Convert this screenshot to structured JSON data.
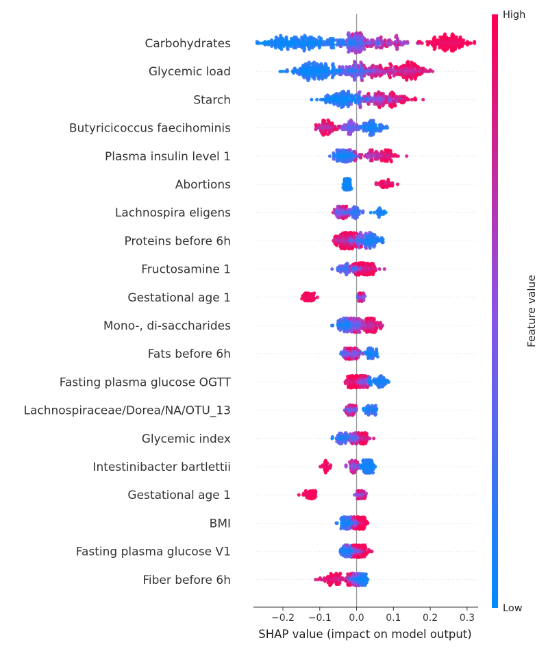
{
  "chart_data": {
    "type": "scatter",
    "subtype": "shap-beeswarm",
    "xlabel": "SHAP value (impact on model output)",
    "xlim": [
      -0.28,
      0.33
    ],
    "xticks": [
      -0.2,
      -0.1,
      0.0,
      0.1,
      0.2,
      0.3
    ],
    "xtick_labels": [
      "−0.2",
      "−0.1",
      "0.0",
      "0.1",
      "0.2",
      "0.3"
    ],
    "colorbar": {
      "title": "Feature value",
      "high_label": "High",
      "low_label": "Low",
      "low_color": "#008bfb",
      "mid_color": "#8c52e6",
      "high_color": "#ff0051"
    },
    "features": [
      {
        "name": "Carbohydrates",
        "width": 1.0,
        "clusters": [
          {
            "c": -0.17,
            "s": 0.05,
            "n": 160,
            "v": 0.05,
            "sv": 0.07
          },
          {
            "c": -0.05,
            "s": 0.05,
            "n": 60,
            "v": 0.1,
            "sv": 0.08
          },
          {
            "c": 0.0,
            "s": 0.02,
            "n": 110,
            "v": 0.35,
            "sv": 0.15
          },
          {
            "c": 0.07,
            "s": 0.035,
            "n": 80,
            "v": 0.62,
            "sv": 0.12
          },
          {
            "c": 0.25,
            "s": 0.03,
            "n": 130,
            "v": 0.95,
            "sv": 0.05
          }
        ]
      },
      {
        "name": "Glycemic load",
        "width": 0.95,
        "clusters": [
          {
            "c": -0.11,
            "s": 0.04,
            "n": 160,
            "v": 0.06,
            "sv": 0.07
          },
          {
            "c": -0.01,
            "s": 0.025,
            "n": 90,
            "v": 0.3,
            "sv": 0.15
          },
          {
            "c": 0.07,
            "s": 0.035,
            "n": 80,
            "v": 0.7,
            "sv": 0.12
          },
          {
            "c": 0.14,
            "s": 0.025,
            "n": 110,
            "v": 0.85,
            "sv": 0.1
          }
        ]
      },
      {
        "name": "Starch",
        "width": 0.8,
        "clusters": [
          {
            "c": -0.03,
            "s": 0.035,
            "n": 130,
            "v": 0.08,
            "sv": 0.08
          },
          {
            "c": 0.06,
            "s": 0.03,
            "n": 80,
            "v": 0.55,
            "sv": 0.15
          },
          {
            "c": 0.11,
            "s": 0.03,
            "n": 60,
            "v": 0.85,
            "sv": 0.1
          }
        ]
      },
      {
        "name": "Butyricicoccus faecihominis",
        "width": 0.75,
        "clusters": [
          {
            "c": -0.08,
            "s": 0.015,
            "n": 70,
            "v": 0.8,
            "sv": 0.1
          },
          {
            "c": -0.02,
            "s": 0.01,
            "n": 45,
            "v": 0.4,
            "sv": 0.12
          },
          {
            "c": 0.04,
            "s": 0.015,
            "n": 80,
            "v": 0.1,
            "sv": 0.08
          }
        ]
      },
      {
        "name": "Plasma insulin level 1",
        "width": 0.6,
        "clusters": [
          {
            "c": -0.03,
            "s": 0.015,
            "n": 100,
            "v": 0.15,
            "sv": 0.1
          },
          {
            "c": 0.04,
            "s": 0.025,
            "n": 60,
            "v": 0.7,
            "sv": 0.12
          },
          {
            "c": 0.09,
            "s": 0.015,
            "n": 40,
            "v": 0.9,
            "sv": 0.08
          }
        ]
      },
      {
        "name": "Abortions",
        "width": 0.55,
        "clusters": [
          {
            "c": -0.025,
            "s": 0.004,
            "n": 180,
            "v": 0.03,
            "sv": 0.03
          },
          {
            "c": 0.08,
            "s": 0.015,
            "n": 30,
            "v": 0.9,
            "sv": 0.08
          }
        ]
      },
      {
        "name": "Lachnospira eligens",
        "width": 0.6,
        "clusters": [
          {
            "c": -0.04,
            "s": 0.01,
            "n": 70,
            "v": 0.5,
            "sv": 0.2
          },
          {
            "c": -0.005,
            "s": 0.012,
            "n": 50,
            "v": 0.2,
            "sv": 0.1
          },
          {
            "c": 0.06,
            "s": 0.01,
            "n": 20,
            "v": 0.05,
            "sv": 0.05
          }
        ]
      },
      {
        "name": "Proteins before 6h",
        "width": 0.8,
        "clusters": [
          {
            "c": -0.03,
            "s": 0.015,
            "n": 150,
            "v": 0.85,
            "sv": 0.1
          },
          {
            "c": 0.0,
            "s": 0.015,
            "n": 60,
            "v": 0.4,
            "sv": 0.15
          },
          {
            "c": 0.04,
            "s": 0.015,
            "n": 70,
            "v": 0.1,
            "sv": 0.08
          }
        ]
      },
      {
        "name": "Fructosamine 1",
        "width": 0.6,
        "clusters": [
          {
            "c": -0.03,
            "s": 0.015,
            "n": 40,
            "v": 0.25,
            "sv": 0.12
          },
          {
            "c": 0.0,
            "s": 0.01,
            "n": 30,
            "v": 0.4,
            "sv": 0.15
          },
          {
            "c": 0.025,
            "s": 0.015,
            "n": 100,
            "v": 0.88,
            "sv": 0.08
          }
        ]
      },
      {
        "name": "Gestational age 1",
        "width": 0.4,
        "clusters": [
          {
            "c": -0.13,
            "s": 0.01,
            "n": 55,
            "v": 0.95,
            "sv": 0.04
          },
          {
            "c": 0.012,
            "s": 0.004,
            "n": 70,
            "v": 0.55,
            "sv": 0.2
          }
        ]
      },
      {
        "name": "Mono-, di-saccharides",
        "width": 0.7,
        "clusters": [
          {
            "c": -0.03,
            "s": 0.015,
            "n": 70,
            "v": 0.15,
            "sv": 0.1
          },
          {
            "c": 0.0,
            "s": 0.01,
            "n": 60,
            "v": 0.5,
            "sv": 0.15
          },
          {
            "c": 0.04,
            "s": 0.015,
            "n": 90,
            "v": 0.8,
            "sv": 0.1
          }
        ]
      },
      {
        "name": "Fats before 6h",
        "width": 0.55,
        "clusters": [
          {
            "c": -0.015,
            "s": 0.012,
            "n": 110,
            "v": 0.55,
            "sv": 0.2
          },
          {
            "c": 0.04,
            "s": 0.01,
            "n": 40,
            "v": 0.1,
            "sv": 0.08
          }
        ]
      },
      {
        "name": "Fasting plasma glucose OGTT",
        "width": 0.6,
        "clusters": [
          {
            "c": -0.01,
            "s": 0.01,
            "n": 90,
            "v": 0.9,
            "sv": 0.08
          },
          {
            "c": 0.015,
            "s": 0.01,
            "n": 60,
            "v": 0.55,
            "sv": 0.2
          },
          {
            "c": 0.06,
            "s": 0.015,
            "n": 50,
            "v": 0.08,
            "sv": 0.06
          }
        ]
      },
      {
        "name": "Lachnospiraceae/Dorea/NA/OTU_13",
        "width": 0.5,
        "clusters": [
          {
            "c": -0.015,
            "s": 0.008,
            "n": 80,
            "v": 0.55,
            "sv": 0.2
          },
          {
            "c": 0.04,
            "s": 0.01,
            "n": 40,
            "v": 0.1,
            "sv": 0.08
          }
        ]
      },
      {
        "name": "Glycemic index",
        "width": 0.55,
        "clusters": [
          {
            "c": -0.04,
            "s": 0.012,
            "n": 50,
            "v": 0.15,
            "sv": 0.1
          },
          {
            "c": 0.0,
            "s": 0.01,
            "n": 50,
            "v": 0.45,
            "sv": 0.2
          },
          {
            "c": 0.02,
            "s": 0.008,
            "n": 60,
            "v": 0.82,
            "sv": 0.1
          }
        ]
      },
      {
        "name": "Intestinibacter bartlettii",
        "width": 0.65,
        "clusters": [
          {
            "c": -0.08,
            "s": 0.007,
            "n": 25,
            "v": 0.95,
            "sv": 0.04
          },
          {
            "c": -0.01,
            "s": 0.008,
            "n": 40,
            "v": 0.6,
            "sv": 0.15
          },
          {
            "c": 0.03,
            "s": 0.008,
            "n": 120,
            "v": 0.06,
            "sv": 0.05
          }
        ]
      },
      {
        "name": "Gestational age 1",
        "width": 0.4,
        "clusters": [
          {
            "c": -0.125,
            "s": 0.01,
            "n": 50,
            "v": 0.95,
            "sv": 0.04
          },
          {
            "c": 0.01,
            "s": 0.006,
            "n": 70,
            "v": 0.6,
            "sv": 0.2
          }
        ]
      },
      {
        "name": "BMI",
        "width": 0.6,
        "clusters": [
          {
            "c": -0.025,
            "s": 0.01,
            "n": 80,
            "v": 0.12,
            "sv": 0.08
          },
          {
            "c": 0.0,
            "s": 0.008,
            "n": 50,
            "v": 0.5,
            "sv": 0.2
          },
          {
            "c": 0.015,
            "s": 0.006,
            "n": 70,
            "v": 0.92,
            "sv": 0.06
          }
        ]
      },
      {
        "name": "Fasting plasma glucose V1",
        "width": 0.6,
        "clusters": [
          {
            "c": -0.025,
            "s": 0.012,
            "n": 60,
            "v": 0.15,
            "sv": 0.1
          },
          {
            "c": 0.0,
            "s": 0.01,
            "n": 70,
            "v": 0.5,
            "sv": 0.2
          },
          {
            "c": 0.015,
            "s": 0.01,
            "n": 60,
            "v": 0.88,
            "sv": 0.08
          }
        ]
      },
      {
        "name": "Fiber before 6h",
        "width": 0.6,
        "clusters": [
          {
            "c": -0.06,
            "s": 0.02,
            "n": 70,
            "v": 0.9,
            "sv": 0.08
          },
          {
            "c": -0.01,
            "s": 0.01,
            "n": 50,
            "v": 0.5,
            "sv": 0.2
          },
          {
            "c": 0.01,
            "s": 0.01,
            "n": 70,
            "v": 0.08,
            "sv": 0.06
          }
        ]
      }
    ]
  }
}
